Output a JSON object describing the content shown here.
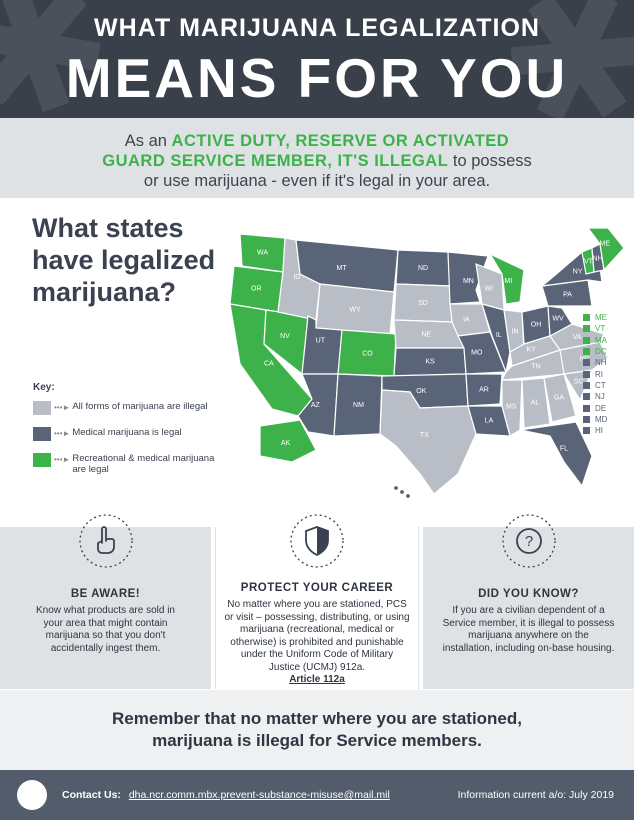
{
  "header": {
    "line1": "WHAT MARIJUANA LEGALIZATION",
    "line2": "MEANS FOR YOU"
  },
  "intro": {
    "pre": "As an ",
    "em1": "ACTIVE DUTY, RESERVE OR ACTIVATED",
    "em2": "GUARD SERVICE MEMBER, IT'S ILLEGAL",
    "post1": " to possess",
    "post2": "or use marijuana - even if it's legal in your area."
  },
  "question": {
    "line1": "What states",
    "line2": "have legalized",
    "line3": "marijuana?"
  },
  "colors": {
    "illegal": "#b9bec6",
    "medical": "#5a6478",
    "recreational": "#3db24a"
  },
  "key": {
    "title": "Key:",
    "illegal": "All forms of marijuana are illegal",
    "medical": "Medical marijuana is legal",
    "recreational": "Recreational & medical marijuana are legal"
  },
  "map_labels": {
    "WA": "WA",
    "OR": "OR",
    "CA": "CA",
    "NV": "NV",
    "ID": "ID",
    "MT": "MT",
    "WY": "WY",
    "UT": "UT",
    "AZ": "AZ",
    "CO": "CO",
    "NM": "NM",
    "ND": "ND",
    "SD": "SD",
    "NE": "NE",
    "KS": "KS",
    "OK": "OK",
    "TX": "TX",
    "MN": "MN",
    "IA": "IA",
    "MO": "MO",
    "AR": "AR",
    "LA": "LA",
    "WI": "WI",
    "IL": "IL",
    "MI": "MI",
    "IN": "IN",
    "OH": "OH",
    "KY": "KY",
    "TN": "TN",
    "MS": "MS",
    "AL": "AL",
    "GA": "GA",
    "FL": "FL",
    "SC": "SC",
    "NC": "NC",
    "VA": "VA",
    "WV": "WV",
    "PA": "PA",
    "NY": "NY",
    "ME": "ME",
    "AK": "AK",
    "VT": "VT",
    "NH": "NH"
  },
  "side_list": [
    {
      "code": "ME",
      "status": "recreational"
    },
    {
      "code": "VT",
      "status": "recreational"
    },
    {
      "code": "MA",
      "status": "recreational"
    },
    {
      "code": "DC",
      "status": "recreational"
    },
    {
      "code": "NH",
      "status": "medical"
    },
    {
      "code": "RI",
      "status": "medical"
    },
    {
      "code": "CT",
      "status": "medical"
    },
    {
      "code": "NJ",
      "status": "medical"
    },
    {
      "code": "DE",
      "status": "medical"
    },
    {
      "code": "MD",
      "status": "medical"
    },
    {
      "code": "HI",
      "status": "medical"
    }
  ],
  "boxes": {
    "aware": {
      "icon": "hand-pointing-icon",
      "title": "BE AWARE!",
      "text": "Know what products are sold in your area that might contain marijuana so that you don't accidentally ingest them."
    },
    "career": {
      "icon": "shield-icon",
      "title": "PROTECT YOUR CAREER",
      "text": "No matter where you are stationed, PCS or visit – possessing, distributing, or using marijuana (recreational, medical or otherwise) is prohibited and punishable under the Uniform Code of Military Justice (UCMJ) 912a.",
      "link": "Article 112a"
    },
    "know": {
      "icon": "question-icon",
      "title": "DID YOU KNOW?",
      "text": "If you are a civilian dependent of a Service member, it is illegal to possess marijuana anywhere on the installation, including on-base housing."
    }
  },
  "remember": {
    "line1": "Remember that no matter where you are stationed,",
    "line2": "marijuana is illegal for Service members."
  },
  "footer": {
    "contact_label": "Contact Us:",
    "email": "dha.ncr.comm.mbx.prevent-substance-misuse@mail.mil",
    "info": "Information current a/o: July 2019"
  }
}
